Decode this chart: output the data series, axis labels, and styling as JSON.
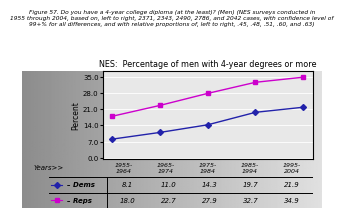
{
  "title": "NES:  Percentage of men with 4-year degrees or more",
  "ylabel": "Percent",
  "xlabel": "Years>>",
  "categories": [
    "1955-\n1964",
    "1965-\n1974",
    "1975-\n1984",
    "1985-\n1994",
    "1995-\n2004"
  ],
  "dems_values": [
    8.1,
    11.0,
    14.3,
    19.7,
    21.9
  ],
  "reps_values": [
    18.0,
    22.7,
    27.9,
    32.7,
    34.9
  ],
  "dems_color": "#2222aa",
  "reps_color": "#cc00cc",
  "yticks": [
    0.0,
    7.0,
    14.0,
    21.0,
    28.0,
    35.0
  ],
  "ylim": [
    -0.5,
    37.5
  ],
  "table_dems_label": "Dems",
  "table_reps_label": "Reps",
  "table_dems_values": [
    "8.1",
    "11.0",
    "14.3",
    "19.7",
    "21.9"
  ],
  "table_reps_values": [
    "18.0",
    "22.7",
    "27.9",
    "32.7",
    "34.9"
  ],
  "bg_left_color": "#aaaaaa",
  "bg_right_color": "#e0e0e0",
  "plot_bg_color": "#e8e8e8",
  "caption_line1": "Figure 57. Do you have a 4-year college diploma (at the least)? (Men) (NES surveys conducted in",
  "caption_line2": "1955 through 2004, based on, left to right, 2371, 2343, 2490, 2786, and 2042 cases, with confidence level of",
  "caption_line3": "99+% for all differences, and with relative proportions of, left to right, .45, .48, .51, .60, and .63)"
}
